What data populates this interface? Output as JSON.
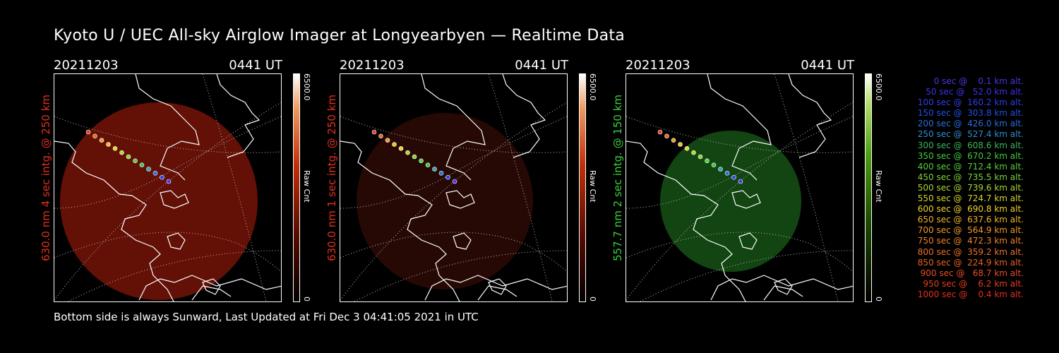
{
  "title": "Kyoto U / UEC All-sky Airglow Imager at Longyearbyen — Realtime Data",
  "footer": "Bottom side is always Sunward, Last Updated at Fri Dec  3 04:41:05 2021 in UTC",
  "panels": [
    {
      "date": "20211203",
      "time": "0441 UT",
      "ylabel": "630.0 nm 4 sec intg. @ 250 km",
      "label_color": "#e0301e",
      "cbar_max": "6500.0",
      "cbar_unit": "Raw Cnt",
      "cbar_min": "0",
      "glow": "#6e1208"
    },
    {
      "date": "20211203",
      "time": "0441 UT",
      "ylabel": "630.0 nm 1 sec intg. @ 250 km",
      "label_color": "#e0301e",
      "cbar_max": "6500.0",
      "cbar_unit": "Raw Cnt",
      "cbar_min": "0",
      "glow": "#2a0a06"
    },
    {
      "date": "20211203",
      "time": "0441 UT",
      "ylabel": "557.7 nm 2 sec intg. @ 150 km",
      "label_color": "#3ad03a",
      "cbar_max": "6500.0",
      "cbar_unit": "Raw Cnt",
      "cbar_min": "0",
      "glow": "#144d14"
    }
  ],
  "legend": [
    {
      "text": "   0 sec @    0.1 km alt.",
      "color": "#4a35e8"
    },
    {
      "text": "  50 sec @   52.0 km alt.",
      "color": "#3b32e6"
    },
    {
      "text": " 100 sec @  160.2 km alt.",
      "color": "#2e3de8"
    },
    {
      "text": " 150 sec @  303.8 km alt.",
      "color": "#2250e6"
    },
    {
      "text": " 200 sec @  426.0 km alt.",
      "color": "#2a6ee0"
    },
    {
      "text": " 250 sec @  527.4 km alt.",
      "color": "#2f8fcf"
    },
    {
      "text": " 300 sec @  608.6 km alt.",
      "color": "#3ab85a"
    },
    {
      "text": " 350 sec @  670.2 km alt.",
      "color": "#3fcc3f"
    },
    {
      "text": " 400 sec @  712.4 km alt.",
      "color": "#53d23a"
    },
    {
      "text": " 450 sec @  735.5 km alt.",
      "color": "#7ad634"
    },
    {
      "text": " 500 sec @  739.6 km alt.",
      "color": "#a6d830"
    },
    {
      "text": " 550 sec @  724.7 km alt.",
      "color": "#d4d52c"
    },
    {
      "text": " 600 sec @  690.8 km alt.",
      "color": "#f2d22a"
    },
    {
      "text": " 650 sec @  637.6 km alt.",
      "color": "#f4b428"
    },
    {
      "text": " 700 sec @  564.9 km alt.",
      "color": "#f29a26"
    },
    {
      "text": " 750 sec @  472.3 km alt.",
      "color": "#f08424"
    },
    {
      "text": " 800 sec @  359.2 km alt.",
      "color": "#ee7224"
    },
    {
      "text": " 850 sec @  224.9 km alt.",
      "color": "#ec6022"
    },
    {
      "text": " 900 sec @   68.7 km alt.",
      "color": "#ea4d20"
    },
    {
      "text": " 950 sec @    6.2 km alt.",
      "color": "#e83c1e"
    },
    {
      "text": "1000 sec @    0.4 km alt.",
      "color": "#e62f1c"
    }
  ]
}
